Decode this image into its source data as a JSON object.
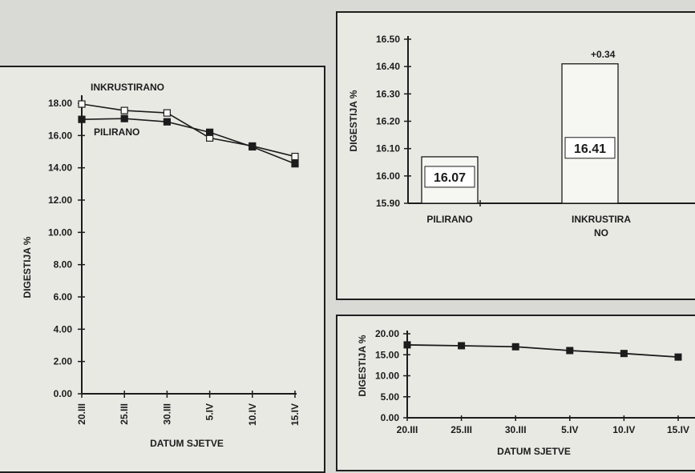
{
  "chart_data": [
    {
      "type": "line",
      "categories": [
        "20.III",
        "25.III",
        "30.III",
        "5.IV",
        "10.IV",
        "15.IV"
      ],
      "series": [
        {
          "name": "INKRUSTIRANO",
          "marker": "open-square",
          "values": [
            17.95,
            17.55,
            17.4,
            15.85,
            15.35,
            14.7
          ]
        },
        {
          "name": "PILIRANO",
          "marker": "filled-square",
          "values": [
            17.0,
            17.05,
            16.85,
            16.2,
            15.3,
            14.25
          ]
        }
      ],
      "title": "",
      "xlabel": "DATUM SJETVE",
      "ylabel": "DIGESTIJA %",
      "ylim": [
        0,
        18
      ],
      "yticks": [
        "0.00",
        "2.00",
        "4.00",
        "6.00",
        "8.00",
        "10.00",
        "12.00",
        "14.00",
        "16.00",
        "18.00"
      ],
      "grid": false,
      "legend": "inline labels top-left"
    },
    {
      "type": "bar",
      "categories": [
        "PILIRANO",
        "INKRUSTIRA NO"
      ],
      "values": [
        16.07,
        16.41
      ],
      "data_labels": [
        "16.07",
        "16.41"
      ],
      "annotation": "+0.34",
      "title": "",
      "xlabel": "",
      "ylabel": "DIGESTIJA %",
      "ylim": [
        15.9,
        16.5
      ],
      "yticks": [
        "15.90",
        "16.00",
        "16.10",
        "16.20",
        "16.30",
        "16.40",
        "16.50"
      ],
      "grid": false
    },
    {
      "type": "line",
      "categories": [
        "20.III",
        "25.III",
        "30.III",
        "5.IV",
        "10.IV",
        "15.IV"
      ],
      "series": [
        {
          "name": "",
          "marker": "filled-square",
          "values": [
            17.35,
            17.15,
            16.9,
            16.0,
            15.3,
            14.45
          ]
        }
      ],
      "title": "",
      "xlabel": "DATUM SJETVE",
      "ylabel": "DIGESTIJA %",
      "ylim": [
        0,
        20
      ],
      "yticks": [
        "0.00",
        "5.00",
        "10.00",
        "15.00",
        "20.00"
      ],
      "grid": false
    }
  ],
  "colors": {
    "ink": "#1c1c1c",
    "paper": "#e9e9e4",
    "background": "#d9d9d5",
    "bar_fill": "#f6f6f2"
  }
}
